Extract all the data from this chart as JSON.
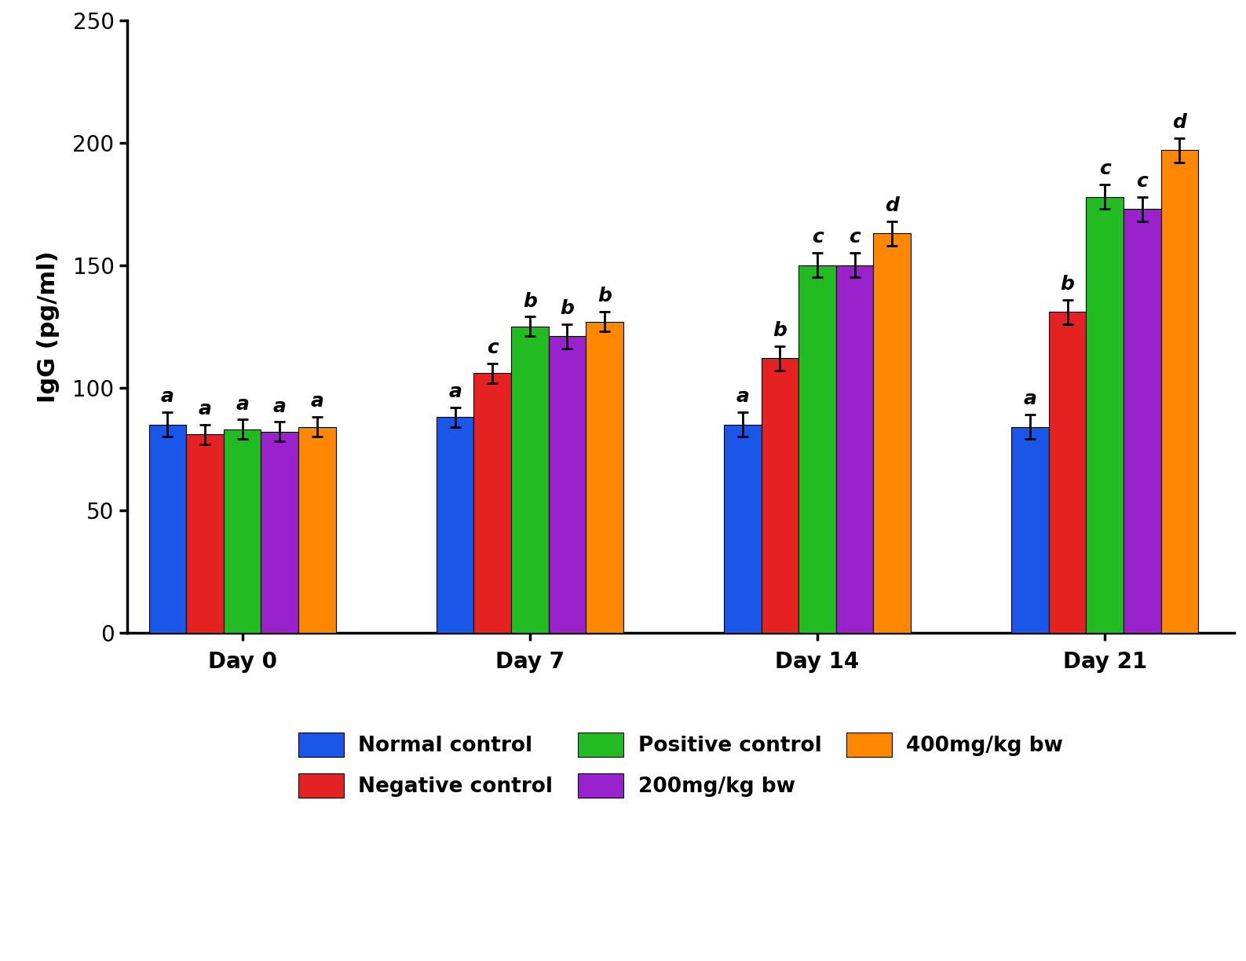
{
  "groups": [
    "Day 0",
    "Day 7",
    "Day 14",
    "Day 21"
  ],
  "series": [
    {
      "label": "Normal control",
      "color": "#1A56E8",
      "values": [
        85,
        88,
        85,
        84
      ],
      "errors": [
        5,
        4,
        5,
        5
      ]
    },
    {
      "label": "Negative control",
      "color": "#E52222",
      "values": [
        81,
        106,
        112,
        131
      ],
      "errors": [
        4,
        4,
        5,
        5
      ]
    },
    {
      "label": "Positive control",
      "color": "#22BB22",
      "values": [
        83,
        125,
        150,
        178
      ],
      "errors": [
        4,
        4,
        5,
        5
      ]
    },
    {
      "label": "200mg/kg bw",
      "color": "#9922CC",
      "values": [
        82,
        121,
        150,
        173
      ],
      "errors": [
        4,
        5,
        5,
        5
      ]
    },
    {
      "label": "400mg/kg bw",
      "color": "#FF8800",
      "values": [
        84,
        127,
        163,
        197
      ],
      "errors": [
        4,
        4,
        5,
        5
      ]
    }
  ],
  "letters": {
    "Day 0": [
      "a",
      "a",
      "a",
      "a",
      "a"
    ],
    "Day 7": [
      "a",
      "c",
      "b",
      "b",
      "b"
    ],
    "Day 14": [
      "a",
      "b",
      "c",
      "c",
      "d"
    ],
    "Day 21": [
      "a",
      "b",
      "c",
      "c",
      "d"
    ]
  },
  "legend_row1": [
    "Normal control",
    "Negative control",
    "Positive control"
  ],
  "legend_row2": [
    "200mg/kg bw",
    "400mg/kg bw"
  ],
  "ylabel": "IgG (pg/ml)",
  "ylim": [
    0,
    250
  ],
  "yticks": [
    0,
    50,
    100,
    150,
    200,
    250
  ],
  "bar_width": 0.13,
  "group_centers": [
    1.0,
    2.0,
    3.0,
    4.0
  ],
  "background_color": "#FFFFFF",
  "tick_fontsize": 20,
  "label_fontsize": 22,
  "letter_fontsize": 18,
  "legend_fontsize": 19
}
